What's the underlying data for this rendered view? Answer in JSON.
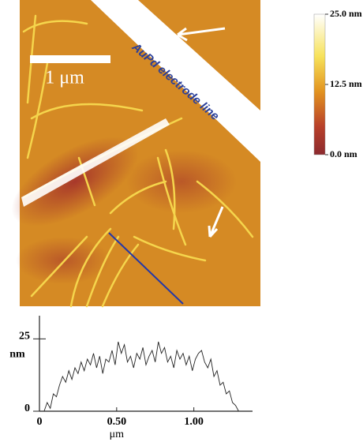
{
  "image": {
    "annotation": "AuPd electrode line",
    "scale_bar_label": "1 μm",
    "colorbar": {
      "lim": [
        0,
        25
      ],
      "ticks": [
        {
          "value": 25,
          "label": "25.0 nm"
        },
        {
          "value": 12.5,
          "label": "12.5 nm"
        },
        {
          "value": 0,
          "label": "0.0 nm"
        }
      ]
    }
  },
  "chart_data": {
    "type": "line",
    "color": "#222222",
    "xlabel": "μm",
    "ylabel": "nm",
    "x": [
      0.03,
      0.05,
      0.07,
      0.09,
      0.11,
      0.13,
      0.15,
      0.17,
      0.19,
      0.21,
      0.23,
      0.25,
      0.27,
      0.29,
      0.31,
      0.33,
      0.35,
      0.37,
      0.39,
      0.41,
      0.43,
      0.45,
      0.47,
      0.49,
      0.51,
      0.53,
      0.55,
      0.57,
      0.59,
      0.61,
      0.63,
      0.65,
      0.67,
      0.69,
      0.71,
      0.73,
      0.75,
      0.77,
      0.79,
      0.81,
      0.83,
      0.85,
      0.87,
      0.89,
      0.91,
      0.93,
      0.95,
      0.97,
      0.99,
      1.01,
      1.03,
      1.05,
      1.07,
      1.09,
      1.11,
      1.13,
      1.15,
      1.17,
      1.19,
      1.21,
      1.23,
      1.25,
      1.27,
      1.29
    ],
    "values": [
      0,
      3,
      1,
      6,
      5,
      9,
      12,
      10,
      14,
      11,
      15,
      13,
      17,
      14,
      18,
      16,
      20,
      15,
      19,
      13,
      18,
      17,
      21,
      16,
      24,
      20,
      23,
      17,
      19,
      15,
      20,
      18,
      22,
      16,
      19,
      21,
      17,
      24,
      20,
      22,
      17,
      19,
      15,
      21,
      18,
      20,
      16,
      19,
      14,
      18,
      20,
      21,
      17,
      15,
      18,
      12,
      14,
      9,
      10,
      6,
      7,
      3,
      2,
      0
    ],
    "xlim": [
      0,
      1.38
    ],
    "ylim": [
      0,
      33
    ],
    "xticks": [
      0,
      {
        "value": 0.5,
        "label": "0.50"
      },
      {
        "value": 1,
        "label": "1.00"
      }
    ],
    "yticks": [
      0,
      25
    ]
  }
}
